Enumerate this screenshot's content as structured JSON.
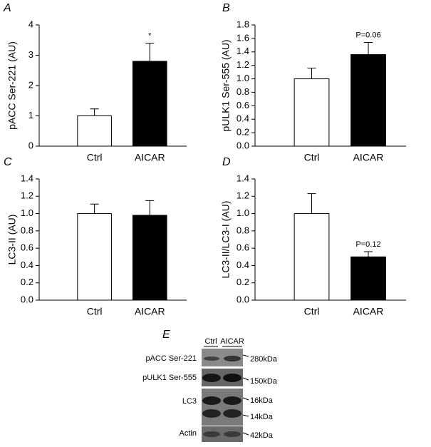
{
  "chart_data": [
    {
      "type": "bar",
      "panel_label": "A",
      "y_label": "pACC Ser-221 (AU)",
      "categories": [
        "Ctrl",
        "AICAR"
      ],
      "values": [
        1.0,
        2.8
      ],
      "errors": [
        0.23,
        0.6
      ],
      "colors": [
        "#ffffff",
        "#000000"
      ],
      "bar_annotations": [
        null,
        "*"
      ],
      "ylim": [
        0,
        4
      ],
      "yticks": [
        0,
        1,
        2,
        3,
        4
      ]
    },
    {
      "type": "bar",
      "panel_label": "B",
      "y_label": "pULK1 Ser-555 (AU)",
      "categories": [
        "Ctrl",
        "AICAR"
      ],
      "values": [
        1.0,
        1.36
      ],
      "errors": [
        0.16,
        0.18
      ],
      "colors": [
        "#ffffff",
        "#000000"
      ],
      "bar_annotations": [
        null,
        "P=0.06"
      ],
      "ylim": [
        0,
        1.8
      ],
      "yticks": [
        {
          "value": 0,
          "label": "0.0"
        },
        0.2,
        0.4,
        0.6,
        0.8,
        {
          "value": 1,
          "label": "1.0"
        },
        1.2,
        1.4,
        1.6,
        1.8
      ]
    },
    {
      "type": "bar",
      "panel_label": "C",
      "y_label": "LC3-II (AU)",
      "categories": [
        "Ctrl",
        "AICAR"
      ],
      "values": [
        1.0,
        0.98
      ],
      "errors": [
        0.11,
        0.17
      ],
      "colors": [
        "#ffffff",
        "#000000"
      ],
      "ylim": [
        0,
        1.4
      ],
      "yticks": [
        {
          "value": 0,
          "label": "0.0"
        },
        0.2,
        0.4,
        0.6,
        0.8,
        {
          "value": 1,
          "label": "1.0"
        },
        1.2,
        1.4
      ]
    },
    {
      "type": "bar",
      "panel_label": "D",
      "y_label": "LC3-II/LC3-I (AU)",
      "categories": [
        "Ctrl",
        "AICAR"
      ],
      "values": [
        1.0,
        0.5
      ],
      "errors": [
        0.23,
        0.06
      ],
      "colors": [
        "#ffffff",
        "#000000"
      ],
      "bar_annotations": [
        null,
        "P=0.12"
      ],
      "ylim": [
        0,
        1.4
      ],
      "yticks": [
        {
          "value": 0,
          "label": "0.0"
        },
        0.2,
        0.4,
        0.6,
        0.8,
        {
          "value": 1,
          "label": "1.0"
        },
        1.2,
        1.4
      ]
    }
  ],
  "blot": {
    "panel_label": "E",
    "lanes": [
      "Ctrl",
      "AICAR"
    ],
    "rows": [
      "pACC Ser-221",
      "pULK1 Ser-555",
      "LC3",
      "Actin"
    ],
    "markers": [
      "280kDa",
      "150kDa",
      "16kDa",
      "14kDa",
      "42kDa"
    ]
  }
}
